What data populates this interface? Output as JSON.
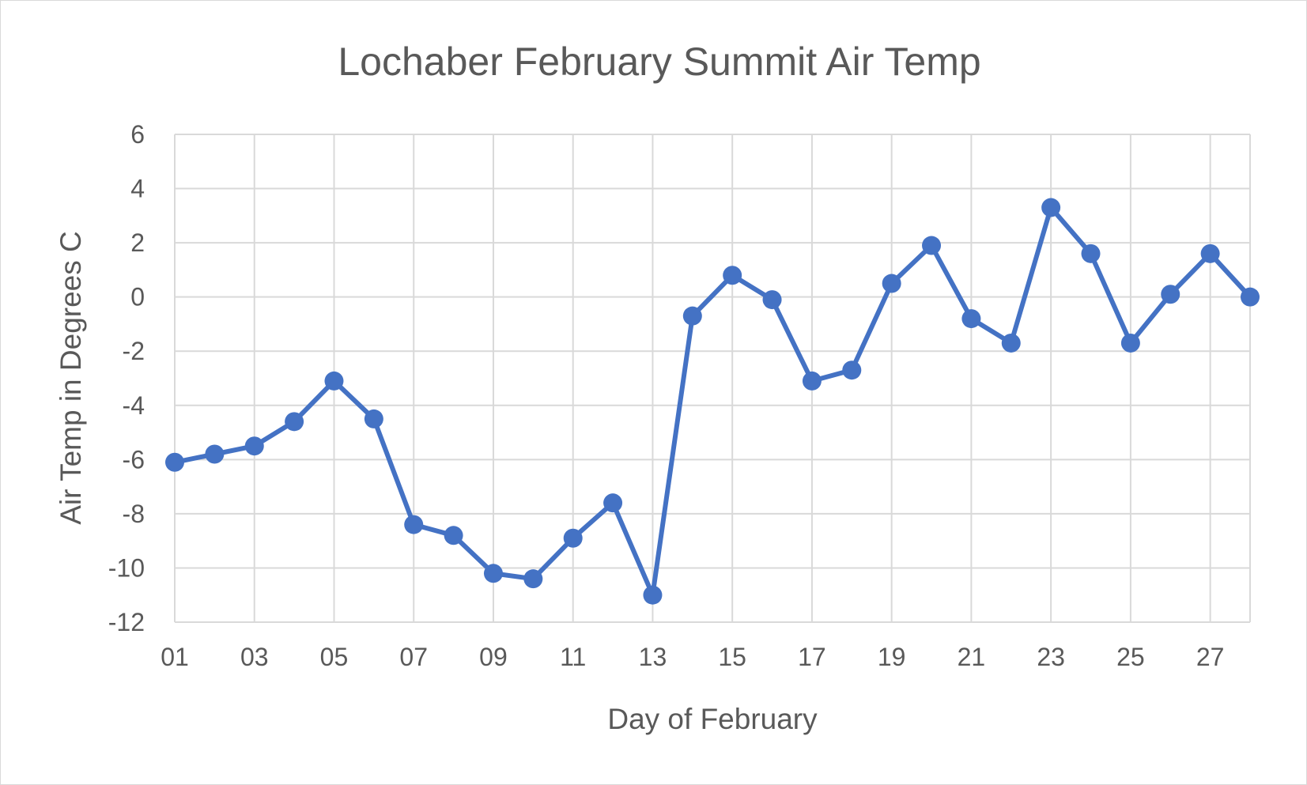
{
  "chart_data": {
    "type": "line",
    "title": "Lochaber February Summit Air Temp",
    "xlabel": "Day of February",
    "ylabel": "Air Temp in Degrees C",
    "ylim": [
      -12,
      6
    ],
    "y_ticks": [
      6,
      4,
      2,
      0,
      -2,
      -4,
      -6,
      -8,
      -10,
      -12
    ],
    "y_tick_labels": [
      "6",
      "4",
      "2",
      "0",
      "-2",
      "-4",
      "-6",
      "-8",
      "-10",
      "-12"
    ],
    "x_tick_labels": [
      "01",
      "03",
      "05",
      "07",
      "09",
      "11",
      "13",
      "15",
      "17",
      "19",
      "21",
      "23",
      "25",
      "27"
    ],
    "grid": true,
    "legend": "none",
    "series": [
      {
        "color": "#4472C4",
        "x": [
          1,
          2,
          3,
          4,
          5,
          6,
          7,
          8,
          9,
          10,
          11,
          12,
          13,
          14,
          15,
          16,
          17,
          18,
          19,
          20,
          21,
          22,
          23,
          24,
          25,
          26,
          27,
          28
        ],
        "values": [
          -6.1,
          -5.8,
          -5.5,
          -4.6,
          -3.1,
          -4.5,
          -8.4,
          -8.8,
          -10.2,
          -10.4,
          -8.9,
          -7.6,
          -11.0,
          -0.7,
          0.8,
          -0.1,
          -3.1,
          -2.7,
          0.5,
          1.9,
          -0.8,
          -1.7,
          3.3,
          1.6,
          -1.7,
          0.1,
          1.6,
          0.0
        ]
      }
    ]
  },
  "colors": {
    "line": "#4472C4",
    "grid": "#d9d9d9",
    "text": "#595959",
    "frame": "#d9d9d9"
  }
}
